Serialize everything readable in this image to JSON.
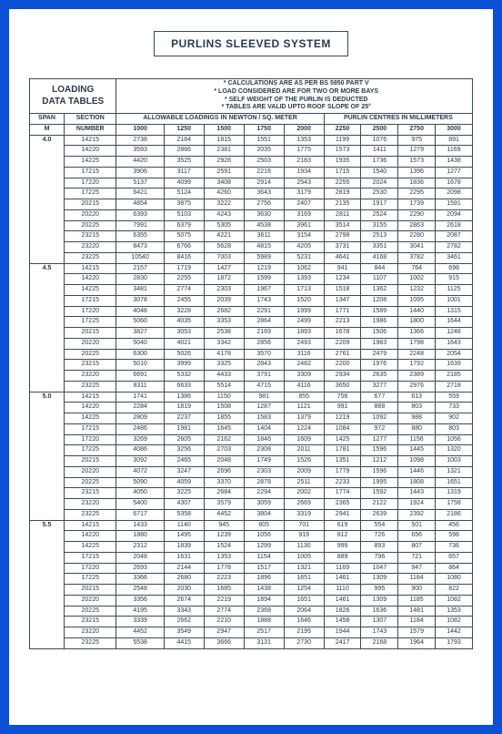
{
  "title": "PURLINS SLEEVED SYSTEM",
  "header": {
    "loading_line1": "LOADING",
    "loading_line2": "DATA TABLES",
    "notes": [
      "* CALCULATIONS ARE AS PER BS 5950 PART V",
      "* LOAD CONSIDERED ARE FOR TWO OR MORE BAYS",
      "* SELF WEIGHT OF THE PURLIN IS DEDUCTED",
      "* TABLES ARE VALID UPTO ROOF SLOPE OF 25°"
    ]
  },
  "columns_header": {
    "span": "SPAN",
    "span_unit": "M",
    "section": "SECTION",
    "section_unit": "NUMBER",
    "allowable": "ALLOWABLE LOADINGS IN NEWTON / SQ. METER",
    "purlin_centres": "PURLIN CENTRES IN MILLIMETERS"
  },
  "centres": [
    "1000",
    "1250",
    "1500",
    "1750",
    "2000",
    "2250",
    "2500",
    "2750",
    "3000"
  ],
  "groups": [
    {
      "span": "4.0",
      "rows": [
        {
          "s": "14215",
          "v": [
            "2738",
            "2184",
            "1815",
            "1551",
            "1353",
            "1199",
            "1076",
            "975",
            "891"
          ]
        },
        {
          "s": "14220",
          "v": [
            "3593",
            "2866",
            "2381",
            "2035",
            "1775",
            "1573",
            "1411",
            "1279",
            "1169"
          ]
        },
        {
          "s": "14225",
          "v": [
            "4420",
            "3525",
            "2928",
            "2503",
            "2183",
            "1935",
            "1736",
            "1573",
            "1438"
          ]
        },
        {
          "s": "17215",
          "v": [
            "3906",
            "3117",
            "2591",
            "2216",
            "1934",
            "1715",
            "1540",
            "1396",
            "1277"
          ]
        },
        {
          "s": "17220",
          "v": [
            "5137",
            "4099",
            "3408",
            "2914",
            "2543",
            "2255",
            "2024",
            "1836",
            "1678"
          ]
        },
        {
          "s": "17225",
          "v": [
            "6421",
            "5124",
            "4260",
            "3643",
            "3179",
            "2819",
            "2530",
            "2295",
            "2098"
          ]
        },
        {
          "s": "20215",
          "v": [
            "4854",
            "3875",
            "3222",
            "2756",
            "2407",
            "2135",
            "1917",
            "1739",
            "1591"
          ]
        },
        {
          "s": "20220",
          "v": [
            "6393",
            "5103",
            "4243",
            "3630",
            "3169",
            "2811",
            "2524",
            "2290",
            "2094"
          ]
        },
        {
          "s": "20225",
          "v": [
            "7991",
            "6379",
            "5305",
            "4538",
            "3961",
            "3514",
            "3155",
            "2863",
            "2618"
          ]
        },
        {
          "s": "23215",
          "v": [
            "6355",
            "5075",
            "4221",
            "3611",
            "3154",
            "2798",
            "2513",
            "2280",
            "2087"
          ]
        },
        {
          "s": "23220",
          "v": [
            "8473",
            "6766",
            "5628",
            "4815",
            "4205",
            "3731",
            "3351",
            "3041",
            "2782"
          ]
        },
        {
          "s": "23225",
          "v": [
            "10540",
            "8416",
            "7003",
            "5989",
            "5231",
            "4641",
            "4168",
            "3782",
            "3461"
          ]
        }
      ]
    },
    {
      "span": "4.5",
      "rows": [
        {
          "s": "14215",
          "v": [
            "2157",
            "1719",
            "1427",
            "1219",
            "1062",
            "941",
            "844",
            "764",
            "698"
          ]
        },
        {
          "s": "14220",
          "v": [
            "2830",
            "2255",
            "1872",
            "1599",
            "1393",
            "1234",
            "1107",
            "1002",
            "915"
          ]
        },
        {
          "s": "14225",
          "v": [
            "3481",
            "2774",
            "2303",
            "1967",
            "1713",
            "1518",
            "1362",
            "1232",
            "1125"
          ]
        },
        {
          "s": "17215",
          "v": [
            "3078",
            "2455",
            "2039",
            "1743",
            "1520",
            "1347",
            "1208",
            "1095",
            "1001"
          ]
        },
        {
          "s": "17220",
          "v": [
            "4048",
            "3228",
            "2682",
            "2291",
            "1999",
            "1771",
            "1589",
            "1440",
            "1315"
          ]
        },
        {
          "s": "17225",
          "v": [
            "5060",
            "4035",
            "3353",
            "2864",
            "2499",
            "2213",
            "1986",
            "1800",
            "1644"
          ]
        },
        {
          "s": "20215",
          "v": [
            "3827",
            "3053",
            "2538",
            "2169",
            "1893",
            "1678",
            "1506",
            "1366",
            "1248"
          ]
        },
        {
          "s": "20220",
          "v": [
            "5040",
            "4021",
            "3342",
            "2856",
            "2493",
            "2209",
            "1983",
            "1798",
            "1643"
          ]
        },
        {
          "s": "20225",
          "v": [
            "6300",
            "5026",
            "4178",
            "3570",
            "3116",
            "2761",
            "2479",
            "2248",
            "2054"
          ]
        },
        {
          "s": "23215",
          "v": [
            "5010",
            "3999",
            "3325",
            "2843",
            "2482",
            "2200",
            "1976",
            "1792",
            "1639"
          ]
        },
        {
          "s": "23220",
          "v": [
            "6691",
            "5332",
            "4433",
            "3791",
            "3309",
            "2934",
            "2635",
            "2389",
            "2185"
          ]
        },
        {
          "s": "23225",
          "v": [
            "8311",
            "6633",
            "5514",
            "4715",
            "4116",
            "3650",
            "3277",
            "2976",
            "2718"
          ]
        }
      ]
    },
    {
      "span": "5.0",
      "rows": [
        {
          "s": "14215",
          "v": [
            "1741",
            "1386",
            "1150",
            "981",
            "855",
            "756",
            "677",
            "613",
            "559"
          ]
        },
        {
          "s": "14220",
          "v": [
            "2284",
            "1819",
            "1508",
            "1287",
            "1121",
            "991",
            "888",
            "803",
            "733"
          ]
        },
        {
          "s": "14225",
          "v": [
            "2809",
            "2237",
            "1855",
            "1583",
            "1379",
            "1219",
            "1092",
            "988",
            "902"
          ]
        },
        {
          "s": "17215",
          "v": [
            "2486",
            "1981",
            "1645",
            "1404",
            "1224",
            "1084",
            "972",
            "880",
            "803"
          ]
        },
        {
          "s": "17220",
          "v": [
            "3269",
            "2605",
            "2162",
            "1846",
            "1609",
            "1425",
            "1277",
            "1156",
            "1056"
          ]
        },
        {
          "s": "17225",
          "v": [
            "4086",
            "3256",
            "2703",
            "2308",
            "2011",
            "1781",
            "1596",
            "1445",
            "1320"
          ]
        },
        {
          "s": "20215",
          "v": [
            "3092",
            "2465",
            "2048",
            "1749",
            "1526",
            "1351",
            "1212",
            "1098",
            "1003"
          ]
        },
        {
          "s": "20220",
          "v": [
            "4072",
            "3247",
            "2696",
            "2303",
            "2009",
            "1779",
            "1596",
            "1446",
            "1321"
          ]
        },
        {
          "s": "20225",
          "v": [
            "5090",
            "4059",
            "3370",
            "2878",
            "2511",
            "2233",
            "1995",
            "1808",
            "1651"
          ]
        },
        {
          "s": "23215",
          "v": [
            "4050",
            "3225",
            "2684",
            "2294",
            "2002",
            "1774",
            "1592",
            "1443",
            "1319"
          ]
        },
        {
          "s": "23220",
          "v": [
            "5400",
            "4307",
            "3579",
            "3059",
            "2669",
            "2365",
            "2122",
            "1924",
            "1758"
          ]
        },
        {
          "s": "23225",
          "v": [
            "6717",
            "5358",
            "4452",
            "3804",
            "3319",
            "2941",
            "2639",
            "2392",
            "2186"
          ]
        }
      ]
    },
    {
      "span": "5.5",
      "rows": [
        {
          "s": "14215",
          "v": [
            "1433",
            "1140",
            "945",
            "805",
            "701",
            "619",
            "554",
            "501",
            "456"
          ]
        },
        {
          "s": "14220",
          "v": [
            "1880",
            "1495",
            "1239",
            "1056",
            "919",
            "812",
            "726",
            "656",
            "598"
          ]
        },
        {
          "s": "14225",
          "v": [
            "2312",
            "1839",
            "1524",
            "1299",
            "1130",
            "999",
            "893",
            "807",
            "736"
          ]
        },
        {
          "s": "17215",
          "v": [
            "2048",
            "1631",
            "1353",
            "1154",
            "1005",
            "889",
            "796",
            "721",
            "657"
          ]
        },
        {
          "s": "17220",
          "v": [
            "2693",
            "2144",
            "1778",
            "1517",
            "1321",
            "1169",
            "1047",
            "947",
            "864"
          ]
        },
        {
          "s": "17225",
          "v": [
            "3366",
            "2680",
            "2223",
            "1896",
            "1651",
            "1461",
            "1309",
            "1184",
            "1080"
          ]
        },
        {
          "s": "20215",
          "v": [
            "2548",
            "2030",
            "1685",
            "1438",
            "1254",
            "1110",
            "995",
            "900",
            "822"
          ]
        },
        {
          "s": "20220",
          "v": [
            "3356",
            "2674",
            "2219",
            "1894",
            "1651",
            "1461",
            "1309",
            "1185",
            "1082"
          ]
        },
        {
          "s": "20225",
          "v": [
            "4195",
            "3343",
            "2774",
            "2368",
            "2064",
            "1826",
            "1636",
            "1481",
            "1353"
          ]
        },
        {
          "s": "23215",
          "v": [
            "3339",
            "2662",
            "2210",
            "1888",
            "1646",
            "1458",
            "1307",
            "1184",
            "1082"
          ]
        },
        {
          "s": "23220",
          "v": [
            "4452",
            "3549",
            "2947",
            "2517",
            "2195",
            "1944",
            "1743",
            "1579",
            "1442"
          ]
        },
        {
          "s": "23225",
          "v": [
            "5538",
            "4415",
            "3666",
            "3131",
            "2730",
            "2417",
            "2168",
            "1964",
            "1793"
          ]
        }
      ]
    }
  ]
}
